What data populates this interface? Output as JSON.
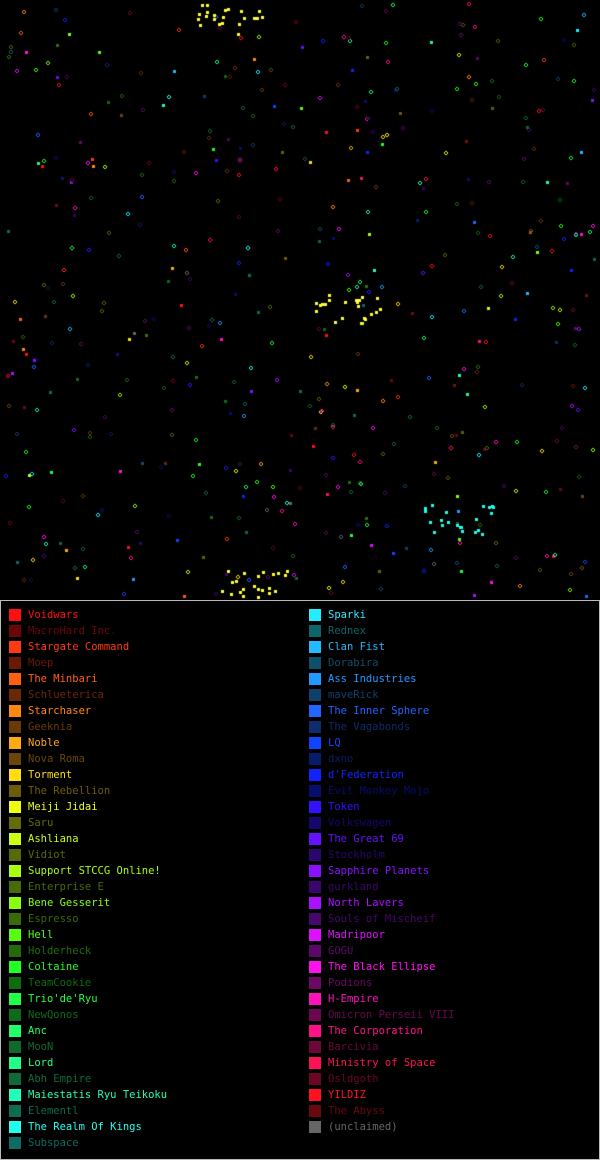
{
  "legend": {
    "left": [
      {
        "name": "Voidwars",
        "color": "#ff1010",
        "dim": false
      },
      {
        "name": "MacroHard Inc.",
        "color": "#ff1010",
        "dim": true
      },
      {
        "name": "Stargate Command",
        "color": "#ff3a10",
        "dim": false
      },
      {
        "name": "Moep",
        "color": "#ff3a10",
        "dim": true
      },
      {
        "name": "The Minbari",
        "color": "#ff6010",
        "dim": false
      },
      {
        "name": "Schlueterica",
        "color": "#ff6010",
        "dim": true
      },
      {
        "name": "Starchaser",
        "color": "#ff8810",
        "dim": false
      },
      {
        "name": "Geeknia",
        "color": "#ff8810",
        "dim": true
      },
      {
        "name": "Noble",
        "color": "#ffaa10",
        "dim": false
      },
      {
        "name": "Nova Roma",
        "color": "#ffaa10",
        "dim": true
      },
      {
        "name": "Torment",
        "color": "#ffdd10",
        "dim": false
      },
      {
        "name": "The Rebellion",
        "color": "#ffdd10",
        "dim": true
      },
      {
        "name": "Meiji Jidai",
        "color": "#eeff10",
        "dim": false
      },
      {
        "name": "Saru",
        "color": "#eeff10",
        "dim": true
      },
      {
        "name": "Ashliana",
        "color": "#ccff10",
        "dim": false
      },
      {
        "name": "Vidiot",
        "color": "#ccff10",
        "dim": true
      },
      {
        "name": "Support STCCG Online!",
        "color": "#aaff10",
        "dim": false
      },
      {
        "name": "Enterprise E",
        "color": "#aaff10",
        "dim": true
      },
      {
        "name": "Bene Gesserit",
        "color": "#88ff10",
        "dim": false
      },
      {
        "name": "Espresso",
        "color": "#88ff10",
        "dim": true
      },
      {
        "name": "Hell",
        "color": "#55ff10",
        "dim": false
      },
      {
        "name": "Holderheck",
        "color": "#55ff10",
        "dim": true
      },
      {
        "name": "Coltaine",
        "color": "#22ff22",
        "dim": false
      },
      {
        "name": "TeamCookie",
        "color": "#22ff22",
        "dim": true
      },
      {
        "name": "Trio'de'Ryu",
        "color": "#22ff44",
        "dim": false
      },
      {
        "name": "NewQonos",
        "color": "#22ff44",
        "dim": true
      },
      {
        "name": "Anc",
        "color": "#22ff66",
        "dim": false
      },
      {
        "name": "MooN",
        "color": "#22ff66",
        "dim": true
      },
      {
        "name": "Lord",
        "color": "#22ff88",
        "dim": false
      },
      {
        "name": "Abh Empire",
        "color": "#22ff88",
        "dim": true
      },
      {
        "name": "Maiestatis Ryu Teikoku",
        "color": "#22ffbb",
        "dim": false
      },
      {
        "name": "Elementl",
        "color": "#22ffbb",
        "dim": true
      },
      {
        "name": "The Realm Of Kings",
        "color": "#22ffee",
        "dim": false
      },
      {
        "name": "Subspace",
        "color": "#22ffee",
        "dim": true
      }
    ],
    "right": [
      {
        "name": "Sparki",
        "color": "#22eeff",
        "dim": false
      },
      {
        "name": "Rednex",
        "color": "#22eeff",
        "dim": true
      },
      {
        "name": "Clan Fist",
        "color": "#22bbff",
        "dim": false
      },
      {
        "name": "Dorabira",
        "color": "#22bbff",
        "dim": true
      },
      {
        "name": "Ass Industries",
        "color": "#2299ff",
        "dim": false
      },
      {
        "name": "maveRick",
        "color": "#2299ff",
        "dim": true
      },
      {
        "name": "The Inner Sphere",
        "color": "#2266ff",
        "dim": false
      },
      {
        "name": "The Vagabonds",
        "color": "#2266ff",
        "dim": true
      },
      {
        "name": "LQ",
        "color": "#1144ff",
        "dim": false
      },
      {
        "name": "dxno",
        "color": "#1144ff",
        "dim": true
      },
      {
        "name": "d'Federation",
        "color": "#1122ff",
        "dim": false
      },
      {
        "name": "Evil Monkey Mojo",
        "color": "#1122ff",
        "dim": true
      },
      {
        "name": "Token",
        "color": "#3311ff",
        "dim": false
      },
      {
        "name": "Volkswagen",
        "color": "#3311ff",
        "dim": true
      },
      {
        "name": "The Great 69",
        "color": "#6611ff",
        "dim": false
      },
      {
        "name": "Stockholm",
        "color": "#6611ff",
        "dim": true
      },
      {
        "name": "Sapphire Planets",
        "color": "#8811ff",
        "dim": false
      },
      {
        "name": "gurkland",
        "color": "#8811ff",
        "dim": true
      },
      {
        "name": "North Lavers",
        "color": "#aa11ff",
        "dim": false
      },
      {
        "name": "Souls of Mischeif",
        "color": "#aa11ff",
        "dim": true
      },
      {
        "name": "Madripoor",
        "color": "#dd11ff",
        "dim": false
      },
      {
        "name": "GOGU",
        "color": "#dd11ff",
        "dim": true
      },
      {
        "name": "The Black Ellipse",
        "color": "#ff11ee",
        "dim": false
      },
      {
        "name": "Podions",
        "color": "#ff11ee",
        "dim": true
      },
      {
        "name": "H-Empire",
        "color": "#ff11bb",
        "dim": false
      },
      {
        "name": "Omicron Perseii VIII",
        "color": "#ff11bb",
        "dim": true
      },
      {
        "name": "The Corporation",
        "color": "#ff1188",
        "dim": false
      },
      {
        "name": "Barcivia",
        "color": "#ff1188",
        "dim": true
      },
      {
        "name": "Ministry of Space",
        "color": "#ff1155",
        "dim": false
      },
      {
        "name": "Osldgoth",
        "color": "#ff1155",
        "dim": true
      },
      {
        "name": "YILDIZ",
        "color": "#ff1122",
        "dim": false
      },
      {
        "name": "The Abyss",
        "color": "#ff1122",
        "dim": true
      },
      {
        "name": "(unclaimed)",
        "color": "#666666",
        "dim": false
      }
    ]
  }
}
